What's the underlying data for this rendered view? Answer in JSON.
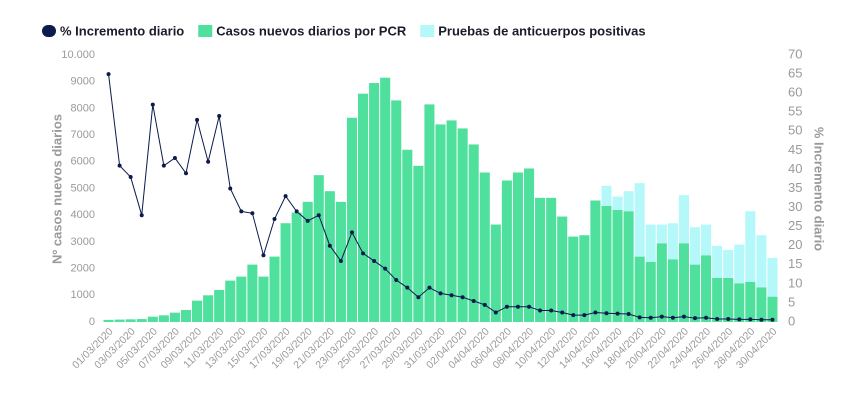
{
  "chart_data": {
    "type": "bar",
    "categories": [
      "01/03/2020",
      null,
      "03/03/2020",
      null,
      "05/03/2020",
      null,
      "07/03/2020",
      null,
      "09/03/2020",
      null,
      "11/03/2020",
      null,
      "13/03/2020",
      null,
      "15/03/2020",
      null,
      "17/03/2020",
      null,
      "19/03/2020",
      null,
      "21/03/2020",
      null,
      "23/03/2020",
      null,
      "25/03/2020",
      null,
      "27/03/2020",
      null,
      "29/03/2020",
      null,
      "31/03/2020",
      null,
      "02/04/2020",
      null,
      "04/04/2020",
      null,
      "06/04/2020",
      null,
      "08/04/2020",
      null,
      "10/04/2020",
      null,
      "12/04/2020",
      null,
      "14/04/2020",
      null,
      "16/04/2020",
      null,
      "18/04/2020",
      null,
      "20/04/2020",
      null,
      "22/04/2020",
      null,
      "24/04/2020",
      null,
      "26/04/2020",
      null,
      "28/04/2020",
      null,
      "30/04/2020"
    ],
    "series": [
      {
        "name": "% Incremento diario",
        "color": "#0c1a4d",
        "type": "line",
        "axis": "y2",
        "values": [
          65,
          41,
          38,
          28,
          57,
          41,
          43,
          39,
          53,
          42,
          54,
          35,
          29,
          28.5,
          17.5,
          27,
          33,
          29,
          26.5,
          28,
          20,
          16,
          23.5,
          18,
          16,
          14,
          11,
          9,
          6.5,
          9,
          7.5,
          7,
          6.5,
          5.5,
          4.5,
          2.5,
          4,
          4,
          4,
          3,
          3,
          2.5,
          1.8,
          1.8,
          2.5,
          2.3,
          2.2,
          2.1,
          1.2,
          1.1,
          1.4,
          1.1,
          1.4,
          1,
          1.1,
          0.8,
          0.8,
          0.7,
          0.7,
          0.6,
          0.6
        ]
      },
      {
        "name": "Casos nuevos diarios por PCR",
        "color": "#4fe09d",
        "type": "bar",
        "values": [
          80,
          90,
          100,
          110,
          200,
          250,
          350,
          450,
          800,
          1000,
          1200,
          1550,
          1700,
          2150,
          1700,
          2450,
          3700,
          4100,
          4500,
          5500,
          4900,
          4500,
          7650,
          8550,
          8950,
          9150,
          8300,
          6450,
          5850,
          8150,
          7400,
          7550,
          7250,
          6650,
          5600,
          3650,
          5300,
          5600,
          5750,
          4650,
          4650,
          3950,
          3200,
          3250,
          4550,
          4350,
          4200,
          4150,
          2450,
          2250,
          2950,
          2350,
          2950,
          2150,
          2500,
          1650,
          1650,
          1450,
          1500,
          1300,
          950
        ]
      },
      {
        "name": "Pruebas de anticuerpos positivas",
        "color": "#b5f8fa",
        "type": "bar",
        "values": [
          null,
          null,
          null,
          null,
          null,
          null,
          null,
          null,
          null,
          null,
          null,
          null,
          null,
          null,
          null,
          null,
          null,
          null,
          null,
          null,
          null,
          null,
          null,
          null,
          null,
          null,
          null,
          null,
          null,
          null,
          null,
          null,
          null,
          null,
          null,
          null,
          null,
          null,
          null,
          null,
          null,
          null,
          null,
          null,
          null,
          750,
          500,
          750,
          2750,
          1400,
          700,
          1350,
          1800,
          1400,
          1150,
          1200,
          1050,
          1450,
          2650,
          1950,
          1450
        ]
      }
    ],
    "ylabel": "Nº casos nuevos diarios",
    "y2label": "% Incremento diario",
    "ylim": [
      0,
      10000
    ],
    "yticks": [
      0,
      1000,
      2000,
      3000,
      4000,
      5000,
      6000,
      7000,
      8000,
      9000,
      {
        "value": 10000,
        "label": "10.000"
      }
    ],
    "y2lim": [
      0,
      70
    ],
    "y2ticks": [
      0,
      5,
      10,
      15,
      20,
      25,
      30,
      35,
      40,
      45,
      50,
      55,
      60,
      65,
      70
    ],
    "legend": "top-left"
  }
}
